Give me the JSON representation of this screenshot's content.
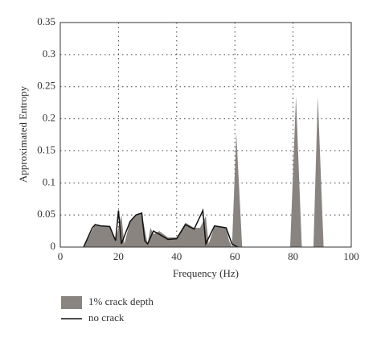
{
  "chart_data": {
    "type": "area",
    "xlabel": "Frequency (Hz)",
    "ylabel": "Approximated Entropy",
    "xlim": [
      0,
      100
    ],
    "ylim": [
      0,
      0.35
    ],
    "xticks": [
      0,
      20,
      40,
      60,
      80,
      100
    ],
    "yticks": [
      0,
      0.05,
      0.1,
      0.15,
      0.2,
      0.25,
      0.3,
      0.35
    ],
    "grid": true,
    "legend": "below",
    "series": [
      {
        "name": "1% crack depth",
        "type": "area",
        "color": "#8a8480",
        "x": [
          8,
          12,
          14,
          17,
          19,
          21,
          22,
          24,
          26,
          28,
          30,
          31,
          32,
          34,
          37,
          40,
          43,
          46,
          48,
          50,
          51,
          53,
          57,
          58,
          59,
          60.5,
          62.5,
          79,
          81,
          83,
          87,
          88.5,
          90.5
        ],
        "values": [
          0,
          0.035,
          0.033,
          0.032,
          0.01,
          0.05,
          0.005,
          0.04,
          0.05,
          0.052,
          0.005,
          0.03,
          0.02,
          0.025,
          0.015,
          0.015,
          0.038,
          0.03,
          0.03,
          0.048,
          0.005,
          0.033,
          0.03,
          0.01,
          0,
          0.178,
          0,
          0,
          0.235,
          0,
          0,
          0.235,
          0
        ]
      },
      {
        "name": "no crack",
        "type": "line",
        "color": "#111111",
        "x": [
          8,
          11,
          12,
          14,
          17,
          19,
          20,
          21,
          24,
          26,
          28,
          29,
          30,
          32,
          34,
          37,
          40,
          43,
          46,
          49,
          50,
          53,
          57,
          59,
          61
        ],
        "values": [
          0,
          0.03,
          0.035,
          0.033,
          0.032,
          0.01,
          0.057,
          0.005,
          0.04,
          0.05,
          0.053,
          0.01,
          0.005,
          0.025,
          0.02,
          0.012,
          0.013,
          0.035,
          0.028,
          0.057,
          0.005,
          0.033,
          0.03,
          0.005,
          0
        ]
      }
    ]
  }
}
